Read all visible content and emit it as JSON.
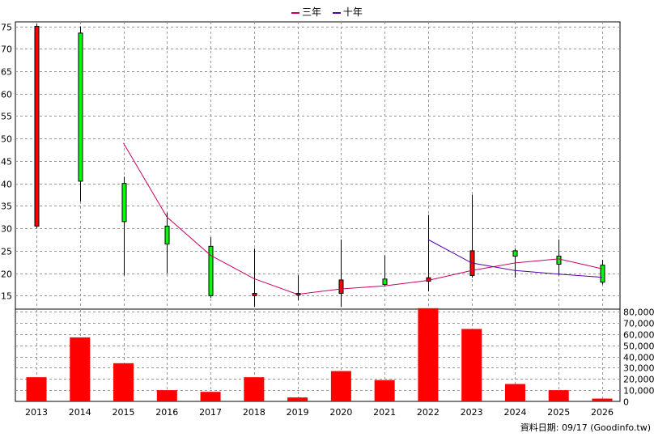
{
  "chart_data": [
    {
      "type": "candlestick",
      "categories": [
        "2013",
        "2014",
        "2015",
        "2016",
        "2017",
        "2018",
        "2019",
        "2020",
        "2021",
        "2022",
        "2023",
        "2024",
        "2025",
        "2026"
      ],
      "ohlc": [
        {
          "open": 75.0,
          "high": 75.5,
          "low": 30.0,
          "close": 30.5
        },
        {
          "open": 40.5,
          "high": 75.0,
          "low": 36.0,
          "close": 73.5
        },
        {
          "open": 31.5,
          "high": 41.5,
          "low": 19.5,
          "close": 40.0
        },
        {
          "open": 26.5,
          "high": 33.5,
          "low": 20.0,
          "close": 30.5
        },
        {
          "open": 15.0,
          "high": 28.0,
          "low": 14.5,
          "close": 26.0
        },
        {
          "open": 15.5,
          "high": 25.5,
          "low": 12.5,
          "close": 15.0
        },
        {
          "open": 15.5,
          "high": 19.5,
          "low": 14.0,
          "close": 15.3
        },
        {
          "open": 18.5,
          "high": 27.5,
          "low": 12.5,
          "close": 15.5
        },
        {
          "open": 17.5,
          "high": 24.0,
          "low": 17.0,
          "close": 18.7
        },
        {
          "open": 19.0,
          "high": 33.0,
          "low": 16.0,
          "close": 18.2
        },
        {
          "open": 25.0,
          "high": 37.5,
          "low": 19.0,
          "close": 19.5
        },
        {
          "open": 23.8,
          "high": 25.5,
          "low": 19.0,
          "close": 25.0
        },
        {
          "open": 22.0,
          "high": 27.5,
          "low": 19.5,
          "close": 23.8
        },
        {
          "open": 18.0,
          "high": 23.0,
          "low": 17.5,
          "close": 21.8
        }
      ],
      "up_color": "#00ff00",
      "down_color": "#ff0000",
      "lines": [
        {
          "name": "三年",
          "color": "#cc0066",
          "start_index": 2,
          "values": [
            49.0,
            32.5,
            24.0,
            18.8,
            15.3,
            16.5,
            17.2,
            18.4,
            20.6,
            22.3,
            23.2,
            21.0
          ]
        },
        {
          "name": "十年",
          "color": "#5500aa",
          "start_index": 9,
          "values": [
            27.5,
            22.3,
            20.6,
            19.8,
            19.1
          ]
        }
      ],
      "ylim": [
        12,
        76
      ],
      "y_ticks": [
        15,
        20,
        25,
        30,
        35,
        40,
        45,
        50,
        55,
        60,
        65,
        70,
        75
      ],
      "y_axis_side": "left",
      "grid": true
    },
    {
      "type": "bar",
      "categories": [
        "2013",
        "2014",
        "2015",
        "2016",
        "2017",
        "2018",
        "2019",
        "2020",
        "2021",
        "2022",
        "2023",
        "2024",
        "2025",
        "2026"
      ],
      "values": [
        21500,
        57000,
        34000,
        10000,
        8500,
        21500,
        3500,
        27000,
        19000,
        83000,
        64500,
        15500,
        10000,
        2500
      ],
      "color": "#ff0000",
      "ylim": [
        0,
        80000
      ],
      "y_ticks": [
        0,
        10000,
        20000,
        30000,
        40000,
        50000,
        60000,
        70000,
        80000
      ],
      "y_tick_labels": [
        "0",
        "10,000",
        "20,000",
        "30,000",
        "40,000",
        "50,000",
        "60,000",
        "70,000",
        "80,000"
      ],
      "y_axis_side": "right",
      "grid": true
    }
  ],
  "source_text": "資料日期: 09/17  (Goodinfo.tw)"
}
